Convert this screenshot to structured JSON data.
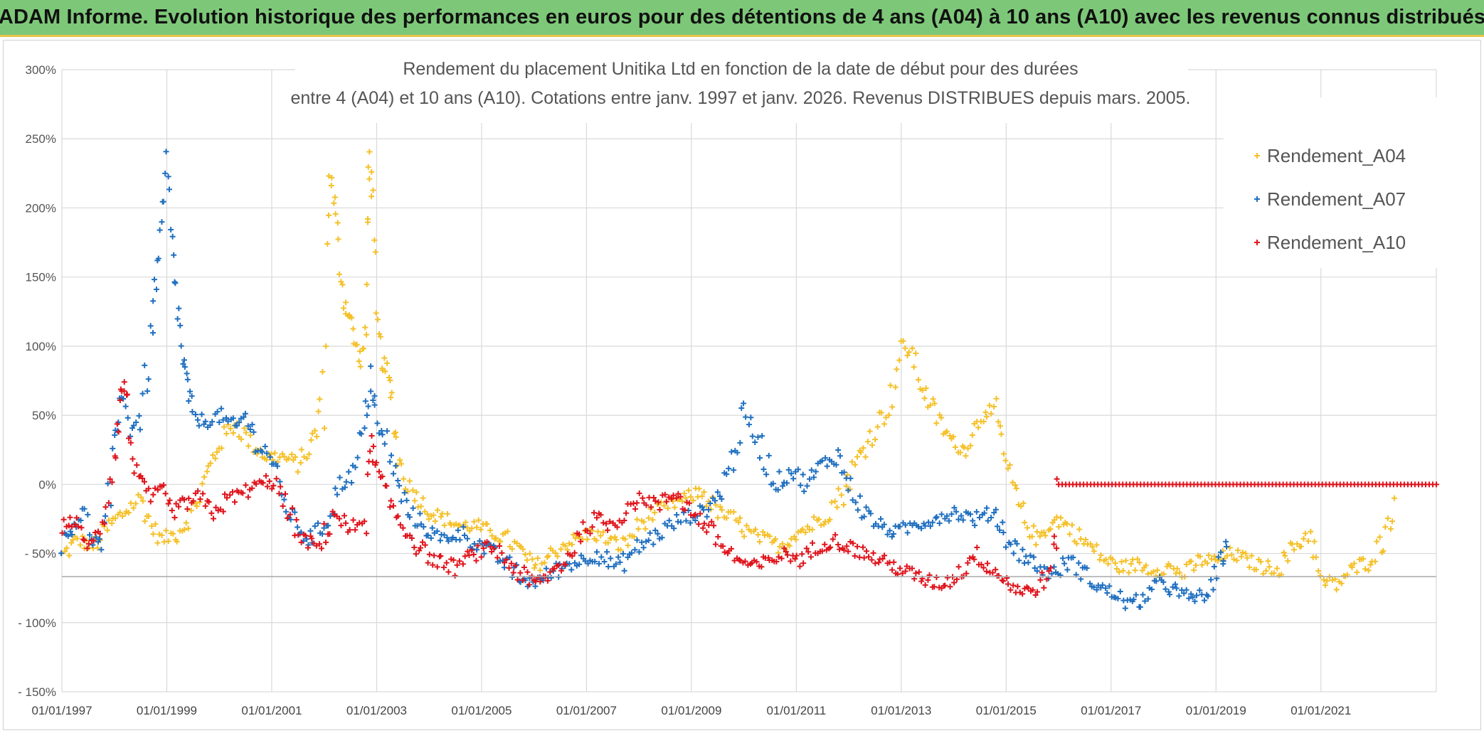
{
  "header": {
    "title": "ADAM Informe. Evolution historique des performances en euros pour des détentions de 4 ans (A04) à 10 ans (A10) avec les revenus connus distribués"
  },
  "chart_data": {
    "type": "scatter",
    "title_line1": "Rendement du placement Unitika Ltd en fonction de la date de début pour des durées",
    "title_line2": "entre 4 (A04) et 10 ans (A10). Cotations entre janv. 1997 et janv. 2026. Revenus DISTRIBUES depuis mars. 2005.",
    "xlabel": "",
    "ylabel": "",
    "x_range": [
      1997.0,
      2023.2
    ],
    "ylim": [
      -150,
      300
    ],
    "x_ticks": [
      "01/01/1997",
      "01/01/1999",
      "01/01/2001",
      "01/01/2003",
      "01/01/2005",
      "01/01/2007",
      "01/01/2009",
      "01/01/2011",
      "01/01/2013",
      "01/01/2015",
      "01/01/2017",
      "01/01/2019",
      "01/01/2021"
    ],
    "y_ticks": [
      "300%",
      "250%",
      "200%",
      "150%",
      "100%",
      "50%",
      "0%",
      "- 50%",
      "- 100%",
      "- 150%"
    ],
    "y_tick_values": [
      300,
      250,
      200,
      150,
      100,
      50,
      0,
      -50,
      -100,
      -150
    ],
    "legend": [
      "Rendement_A04",
      "Rendement_A07",
      "Rendement_A10"
    ],
    "legend_position": "top-right",
    "grid": true,
    "series": [
      {
        "name": "Rendement_A04",
        "color": "#f5c12a",
        "points": [
          [
            1997.0,
            -52
          ],
          [
            1997.3,
            -40
          ],
          [
            1997.6,
            -45
          ],
          [
            1997.9,
            -30
          ],
          [
            1998.2,
            -20
          ],
          [
            1998.5,
            -10
          ],
          [
            1998.7,
            -30
          ],
          [
            1998.9,
            -40
          ],
          [
            1999.2,
            -35
          ],
          [
            1999.5,
            -20
          ],
          [
            1999.8,
            10
          ],
          [
            2000.0,
            30
          ],
          [
            2000.3,
            45
          ],
          [
            2000.6,
            30
          ],
          [
            2000.9,
            20
          ],
          [
            2001.2,
            20
          ],
          [
            2001.5,
            15
          ],
          [
            2001.7,
            25
          ],
          [
            2001.85,
            40
          ],
          [
            2002.0,
            80
          ],
          [
            2002.1,
            230
          ],
          [
            2002.2,
            200
          ],
          [
            2002.3,
            160
          ],
          [
            2002.4,
            130
          ],
          [
            2002.5,
            120
          ],
          [
            2002.6,
            100
          ],
          [
            2002.7,
            90
          ],
          [
            2002.8,
            110
          ],
          [
            2002.85,
            240
          ],
          [
            2002.9,
            210
          ],
          [
            2003.0,
            120
          ],
          [
            2003.1,
            90
          ],
          [
            2003.2,
            80
          ],
          [
            2003.3,
            60
          ],
          [
            2003.4,
            20
          ],
          [
            2003.6,
            0
          ],
          [
            2003.8,
            -10
          ],
          [
            2004.0,
            -20
          ],
          [
            2004.3,
            -25
          ],
          [
            2004.6,
            -30
          ],
          [
            2004.9,
            -30
          ],
          [
            2005.2,
            -35
          ],
          [
            2005.5,
            -40
          ],
          [
            2005.8,
            -50
          ],
          [
            2006.0,
            -60
          ],
          [
            2006.2,
            -55
          ],
          [
            2006.5,
            -45
          ],
          [
            2006.8,
            -40
          ],
          [
            2007.1,
            -35
          ],
          [
            2007.4,
            -40
          ],
          [
            2007.7,
            -45
          ],
          [
            2008.0,
            -30
          ],
          [
            2008.3,
            -20
          ],
          [
            2008.6,
            -15
          ],
          [
            2008.9,
            -10
          ],
          [
            2009.2,
            -5
          ],
          [
            2009.5,
            -20
          ],
          [
            2009.8,
            -25
          ],
          [
            2010.1,
            -35
          ],
          [
            2010.4,
            -40
          ],
          [
            2010.7,
            -45
          ],
          [
            2011.0,
            -35
          ],
          [
            2011.3,
            -30
          ],
          [
            2011.6,
            -20
          ],
          [
            2011.9,
            -5
          ],
          [
            2012.2,
            20
          ],
          [
            2012.5,
            40
          ],
          [
            2012.8,
            60
          ],
          [
            2013.0,
            100
          ],
          [
            2013.2,
            95
          ],
          [
            2013.4,
            70
          ],
          [
            2013.6,
            55
          ],
          [
            2013.8,
            40
          ],
          [
            2014.0,
            30
          ],
          [
            2014.2,
            25
          ],
          [
            2014.4,
            40
          ],
          [
            2014.6,
            55
          ],
          [
            2014.8,
            50
          ],
          [
            2015.0,
            15
          ],
          [
            2015.2,
            -10
          ],
          [
            2015.4,
            -30
          ],
          [
            2015.6,
            -40
          ],
          [
            2015.8,
            -30
          ],
          [
            2016.0,
            -25
          ],
          [
            2016.3,
            -35
          ],
          [
            2016.6,
            -45
          ],
          [
            2016.9,
            -55
          ],
          [
            2017.2,
            -60
          ],
          [
            2017.5,
            -58
          ],
          [
            2017.8,
            -62
          ],
          [
            2018.1,
            -60
          ],
          [
            2018.4,
            -65
          ],
          [
            2018.7,
            -55
          ],
          [
            2019.0,
            -55
          ],
          [
            2019.3,
            -50
          ],
          [
            2019.6,
            -55
          ],
          [
            2019.9,
            -60
          ],
          [
            2020.2,
            -60
          ],
          [
            2020.5,
            -45
          ],
          [
            2020.8,
            -35
          ],
          [
            2021.0,
            -70
          ],
          [
            2021.3,
            -72
          ],
          [
            2021.6,
            -62
          ],
          [
            2021.9,
            -55
          ],
          [
            2022.2,
            -40
          ],
          [
            2022.4,
            -10
          ]
        ]
      },
      {
        "name": "Rendement_A07",
        "color": "#1f6fc0",
        "points": [
          [
            1997.0,
            -45
          ],
          [
            1997.2,
            -30
          ],
          [
            1997.4,
            -20
          ],
          [
            1997.6,
            -40
          ],
          [
            1997.8,
            -45
          ],
          [
            1998.0,
            20
          ],
          [
            1998.1,
            70
          ],
          [
            1998.3,
            40
          ],
          [
            1998.5,
            50
          ],
          [
            1998.7,
            100
          ],
          [
            1998.8,
            150
          ],
          [
            1998.9,
            180
          ],
          [
            1999.0,
            230
          ],
          [
            1999.1,
            170
          ],
          [
            1999.2,
            130
          ],
          [
            1999.3,
            90
          ],
          [
            1999.4,
            70
          ],
          [
            1999.5,
            50
          ],
          [
            1999.7,
            45
          ],
          [
            2000.0,
            50
          ],
          [
            2000.3,
            40
          ],
          [
            2000.5,
            50
          ],
          [
            2000.7,
            30
          ],
          [
            2001.0,
            20
          ],
          [
            2001.2,
            -10
          ],
          [
            2001.4,
            -25
          ],
          [
            2001.7,
            -40
          ],
          [
            2002.0,
            -30
          ],
          [
            2002.3,
            0
          ],
          [
            2002.6,
            10
          ],
          [
            2002.8,
            50
          ],
          [
            2002.9,
            80
          ],
          [
            2003.0,
            40
          ],
          [
            2003.2,
            30
          ],
          [
            2003.4,
            0
          ],
          [
            2003.6,
            -20
          ],
          [
            2003.9,
            -30
          ],
          [
            2004.2,
            -40
          ],
          [
            2004.6,
            -35
          ],
          [
            2005.0,
            -45
          ],
          [
            2005.4,
            -55
          ],
          [
            2005.8,
            -70
          ],
          [
            2006.1,
            -70
          ],
          [
            2006.5,
            -60
          ],
          [
            2006.9,
            -55
          ],
          [
            2007.2,
            -50
          ],
          [
            2007.6,
            -60
          ],
          [
            2008.0,
            -45
          ],
          [
            2008.4,
            -35
          ],
          [
            2008.8,
            -25
          ],
          [
            2009.2,
            -20
          ],
          [
            2009.5,
            -10
          ],
          [
            2009.8,
            20
          ],
          [
            2010.0,
            50
          ],
          [
            2010.3,
            30
          ],
          [
            2010.6,
            0
          ],
          [
            2010.9,
            10
          ],
          [
            2011.2,
            0
          ],
          [
            2011.5,
            15
          ],
          [
            2011.8,
            20
          ],
          [
            2012.0,
            0
          ],
          [
            2012.3,
            -20
          ],
          [
            2012.6,
            -30
          ],
          [
            2012.9,
            -35
          ],
          [
            2013.2,
            -30
          ],
          [
            2013.6,
            -25
          ],
          [
            2014.0,
            -20
          ],
          [
            2014.4,
            -25
          ],
          [
            2014.8,
            -20
          ],
          [
            2015.0,
            -40
          ],
          [
            2015.3,
            -50
          ],
          [
            2015.6,
            -60
          ],
          [
            2015.9,
            -65
          ],
          [
            2016.2,
            -55
          ],
          [
            2016.5,
            -65
          ],
          [
            2016.8,
            -75
          ],
          [
            2017.1,
            -80
          ],
          [
            2017.4,
            -88
          ],
          [
            2017.7,
            -80
          ],
          [
            2018.0,
            -70
          ],
          [
            2018.3,
            -80
          ],
          [
            2018.6,
            -82
          ],
          [
            2018.9,
            -78
          ],
          [
            2019.1,
            -55
          ],
          [
            2019.2,
            -45
          ]
        ]
      },
      {
        "name": "Rendement_A10",
        "color": "#e0141c",
        "points": [
          [
            1997.0,
            -30
          ],
          [
            1997.2,
            -25
          ],
          [
            1997.4,
            -40
          ],
          [
            1997.6,
            -45
          ],
          [
            1997.8,
            -20
          ],
          [
            1998.0,
            20
          ],
          [
            1998.1,
            60
          ],
          [
            1998.2,
            75
          ],
          [
            1998.3,
            30
          ],
          [
            1998.5,
            0
          ],
          [
            1998.7,
            -10
          ],
          [
            1998.9,
            -5
          ],
          [
            1999.1,
            -20
          ],
          [
            1999.3,
            -15
          ],
          [
            1999.6,
            -10
          ],
          [
            1999.9,
            -20
          ],
          [
            2000.2,
            -10
          ],
          [
            2000.5,
            -5
          ],
          [
            2000.8,
            0
          ],
          [
            2001.0,
            5
          ],
          [
            2001.3,
            -20
          ],
          [
            2001.6,
            -40
          ],
          [
            2001.9,
            -45
          ],
          [
            2002.2,
            -20
          ],
          [
            2002.5,
            -35
          ],
          [
            2002.8,
            -20
          ],
          [
            2002.9,
            30
          ],
          [
            2003.0,
            10
          ],
          [
            2003.2,
            -10
          ],
          [
            2003.5,
            -30
          ],
          [
            2003.8,
            -45
          ],
          [
            2004.1,
            -55
          ],
          [
            2004.5,
            -60
          ],
          [
            2004.9,
            -50
          ],
          [
            2005.2,
            -45
          ],
          [
            2005.6,
            -60
          ],
          [
            2006.0,
            -73
          ],
          [
            2006.3,
            -65
          ],
          [
            2006.6,
            -55
          ],
          [
            2006.9,
            -35
          ],
          [
            2007.2,
            -25
          ],
          [
            2007.5,
            -30
          ],
          [
            2007.8,
            -15
          ],
          [
            2008.1,
            -10
          ],
          [
            2008.4,
            -15
          ],
          [
            2008.7,
            -5
          ],
          [
            2009.0,
            -20
          ],
          [
            2009.3,
            -30
          ],
          [
            2009.6,
            -45
          ],
          [
            2009.9,
            -55
          ],
          [
            2010.2,
            -60
          ],
          [
            2010.5,
            -55
          ],
          [
            2010.8,
            -50
          ],
          [
            2011.1,
            -55
          ],
          [
            2011.4,
            -45
          ],
          [
            2011.7,
            -40
          ],
          [
            2012.0,
            -45
          ],
          [
            2012.3,
            -50
          ],
          [
            2012.6,
            -55
          ],
          [
            2012.9,
            -60
          ],
          [
            2013.2,
            -65
          ],
          [
            2013.5,
            -70
          ],
          [
            2013.8,
            -72
          ],
          [
            2014.1,
            -65
          ],
          [
            2014.4,
            -50
          ],
          [
            2014.7,
            -60
          ],
          [
            2015.0,
            -70
          ],
          [
            2015.3,
            -78
          ],
          [
            2015.6,
            -75
          ],
          [
            2015.9,
            -60
          ],
          [
            2016.0,
            0
          ],
          [
            2023.2,
            0
          ]
        ]
      }
    ]
  }
}
